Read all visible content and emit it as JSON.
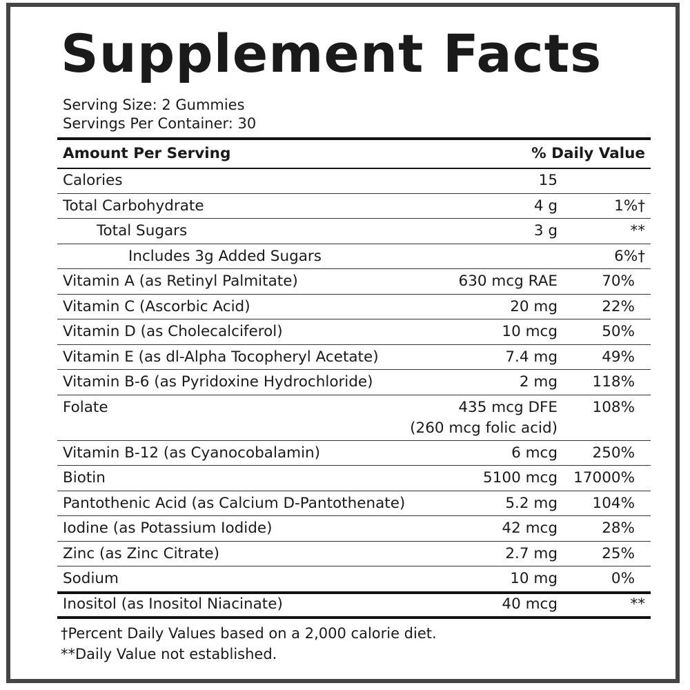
{
  "title": "Supplement Facts",
  "serving_size": "Serving Size: 2 Gummies",
  "servings_per_container": "Servings Per Container: 30",
  "header": {
    "amount": "Amount Per Serving",
    "dv": "% Daily Value"
  },
  "rows": [
    {
      "name": "Calories",
      "amount": "15",
      "dv": ""
    },
    {
      "name": "Total Carbohydrate",
      "amount": "4 g",
      "dv": "1%†"
    },
    {
      "name": "Total Sugars",
      "amount": "3 g",
      "dv": "**"
    },
    {
      "name": "Includes 3g Added Sugars",
      "amount": "",
      "dv": "6%†"
    },
    {
      "name": "Vitamin A (as Retinyl Palmitate)",
      "amount": "630 mcg RAE",
      "dv": "70%"
    },
    {
      "name": "Vitamin C (Ascorbic Acid)",
      "amount": "20 mg",
      "dv": "22%"
    },
    {
      "name": "Vitamin D (as Cholecalciferol)",
      "amount": "10 mcg",
      "dv": "50%"
    },
    {
      "name": "Vitamin E (as dl-Alpha Tocopheryl Acetate)",
      "amount": "7.4 mg",
      "dv": "49%"
    },
    {
      "name": "Vitamin B-6 (as Pyridoxine Hydrochloride)",
      "amount": "2 mg",
      "dv": "118%"
    },
    {
      "name": "Folate",
      "amount": "435 mcg DFE",
      "amount2": "(260 mcg folic acid)",
      "dv": "108%"
    },
    {
      "name": "Vitamin B-12 (as Cyanocobalamin)",
      "amount": "6 mcg",
      "dv": "250%"
    },
    {
      "name": "Biotin",
      "amount": "5100 mcg",
      "dv": "17000%"
    },
    {
      "name": "Pantothenic Acid (as Calcium D-Pantothenate)",
      "amount": "5.2 mg",
      "dv": "104%"
    },
    {
      "name": "Iodine (as Potassium Iodide)",
      "amount": "42 mcg",
      "dv": "28%"
    },
    {
      "name": "Zinc (as Zinc Citrate)",
      "amount": "2.7 mg",
      "dv": "25%"
    },
    {
      "name": "Sodium",
      "amount": "10 mg",
      "dv": "0%"
    },
    {
      "name": "Inositol (as Inositol Niacinate)",
      "amount": "40 mcg",
      "dv": "**"
    }
  ],
  "footnotes": [
    "†Percent Daily Values based on a 2,000 calorie diet.",
    "**Daily Value not established."
  ]
}
